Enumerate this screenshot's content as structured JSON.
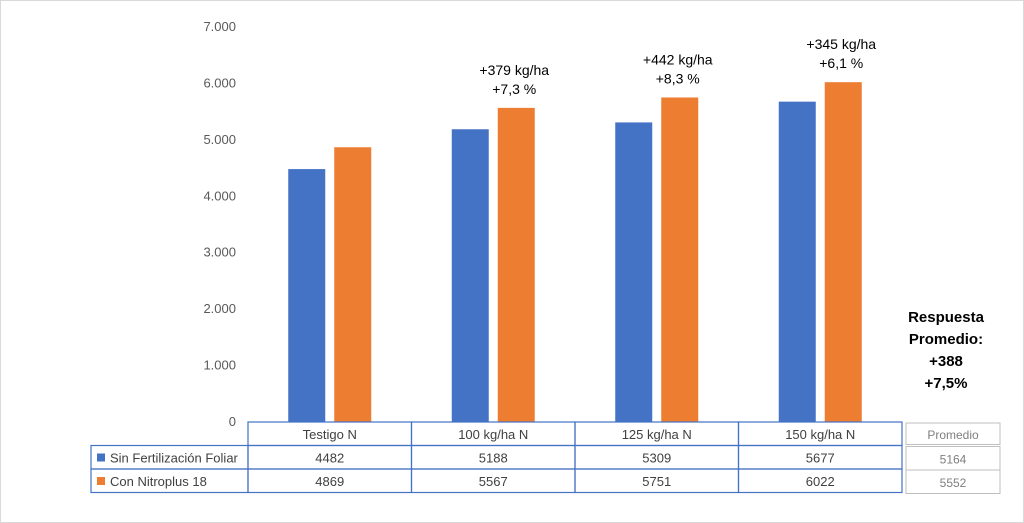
{
  "chart_data": {
    "type": "bar",
    "categories": [
      "Testigo N",
      "100 kg/ha N",
      "125 kg/ha N",
      "150 kg/ha N"
    ],
    "series": [
      {
        "name": "Sin Fertilización Foliar",
        "values": [
          4482,
          5188,
          5309,
          5677
        ],
        "color": "#4472c4",
        "average": "5164"
      },
      {
        "name": "Con Nitroplus 18",
        "values": [
          4869,
          5567,
          5751,
          6022
        ],
        "color": "#ed7d31",
        "average": "5552"
      }
    ],
    "ylim": [
      0,
      7000
    ],
    "yticks": [
      "0",
      "1.000",
      "2.000",
      "3.000",
      "4.000",
      "5.000",
      "6.000",
      "7.000"
    ],
    "grid": false,
    "annotations": [
      null,
      [
        "+379 kg/ha",
        "+7,3 %"
      ],
      [
        "+442 kg/ha",
        "+8,3 %"
      ],
      [
        "+345 kg/ha",
        "+6,1 %"
      ]
    ],
    "table_extra_header": "Promedio",
    "summary": [
      "Respuesta",
      "Promedio:",
      "+388",
      "+7,5%"
    ]
  }
}
